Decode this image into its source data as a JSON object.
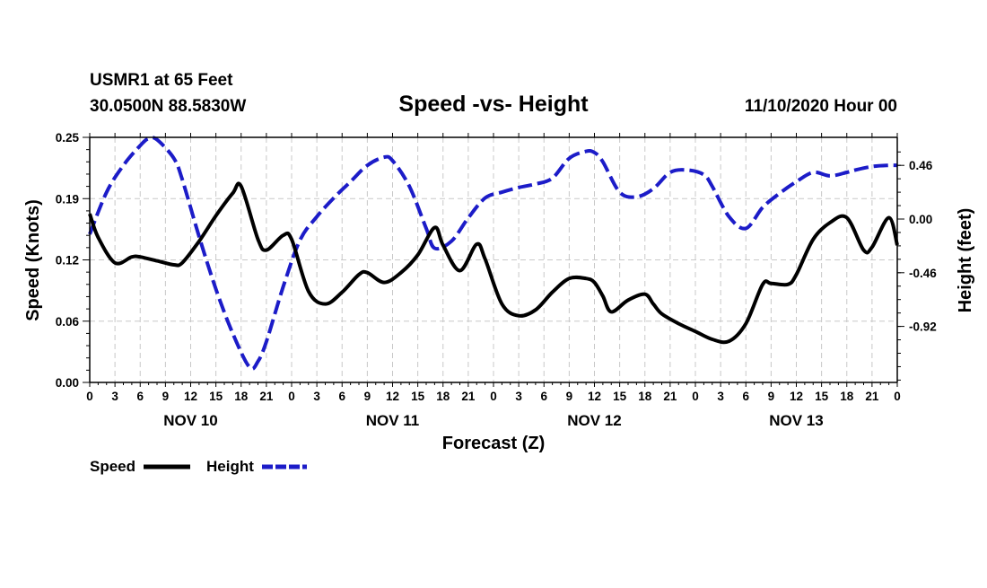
{
  "chart_data": {
    "type": "line",
    "title": "Speed -vs- Height",
    "station": "USMR1 at 65 Feet",
    "location": "30.0500N 88.5830W",
    "run": "11/10/2020 Hour 00",
    "xlabel": "Forecast (Z)",
    "ylabel_left": "Speed (Knots)",
    "ylabel_right": "Height (feet)",
    "x_tick_labels": [
      "0",
      "3",
      "6",
      "9",
      "12",
      "15",
      "18",
      "21",
      "0",
      "3",
      "6",
      "9",
      "12",
      "15",
      "18",
      "21",
      "0",
      "3",
      "6",
      "9",
      "12",
      "15",
      "18",
      "21",
      "0",
      "3",
      "6",
      "9",
      "12",
      "15",
      "18",
      "21",
      "0"
    ],
    "day_labels": [
      {
        "label": "NOV 10",
        "hour": 12
      },
      {
        "label": "NOV 11",
        "hour": 36
      },
      {
        "label": "NOV 12",
        "hour": 60
      },
      {
        "label": "NOV 13",
        "hour": 84
      }
    ],
    "xlim": [
      0,
      96
    ],
    "ylim_left": [
      0,
      0.25
    ],
    "ylim_right": [
      -1.4,
      0.7
    ],
    "left_ticks": [
      "0.00",
      "0.06",
      "0.12",
      "0.19",
      "0.25"
    ],
    "left_tick_values": [
      0,
      0.0625,
      0.125,
      0.1875,
      0.25
    ],
    "right_ticks": [
      "0.46",
      "0.00",
      "-0.46",
      "-0.92"
    ],
    "right_tick_values": [
      0.46,
      0.0,
      -0.46,
      -0.92
    ],
    "series": [
      {
        "name": "Speed",
        "axis": "left",
        "color": "#000000",
        "dash": "solid",
        "x": [
          0,
          1,
          3,
          5,
          6,
          8,
          10,
          11,
          13,
          15,
          17,
          18,
          20,
          21,
          23,
          24,
          26,
          28,
          30,
          32,
          33,
          35,
          37,
          39,
          41,
          42,
          44,
          46,
          47,
          49,
          51,
          53,
          55,
          57,
          59,
          60,
          61,
          62,
          64,
          66,
          67,
          68,
          70,
          72,
          74,
          76,
          78,
          80,
          81,
          83,
          84,
          86,
          88,
          90,
          92,
          93,
          95,
          96
        ],
        "values": [
          0.172,
          0.148,
          0.122,
          0.128,
          0.128,
          0.124,
          0.12,
          0.122,
          0.144,
          0.17,
          0.193,
          0.2,
          0.146,
          0.135,
          0.15,
          0.146,
          0.093,
          0.08,
          0.092,
          0.11,
          0.112,
          0.102,
          0.112,
          0.13,
          0.158,
          0.14,
          0.114,
          0.141,
          0.126,
          0.08,
          0.068,
          0.074,
          0.092,
          0.106,
          0.106,
          0.102,
          0.088,
          0.072,
          0.084,
          0.09,
          0.08,
          0.07,
          0.06,
          0.052,
          0.044,
          0.042,
          0.06,
          0.1,
          0.101,
          0.1,
          0.11,
          0.146,
          0.163,
          0.168,
          0.135,
          0.138,
          0.168,
          0.14
        ]
      },
      {
        "name": "Height",
        "axis": "right",
        "color": "#1c1cc8",
        "dash": "dashed",
        "x": [
          0,
          2,
          4,
          6,
          7,
          8,
          10,
          11,
          13,
          15,
          17,
          19,
          20,
          21,
          23,
          25,
          27,
          29,
          31,
          33,
          35,
          36,
          38,
          40,
          41,
          43,
          45,
          47,
          49,
          51,
          53,
          55,
          57,
          59,
          60,
          61,
          63,
          65,
          67,
          69,
          71,
          73,
          74,
          76,
          78,
          80,
          82,
          84,
          86,
          88,
          90,
          91,
          93,
          95,
          96
        ],
        "values": [
          -0.13,
          0.23,
          0.46,
          0.63,
          0.69,
          0.68,
          0.52,
          0.34,
          -0.15,
          -0.6,
          -0.98,
          -1.27,
          -1.22,
          -1.05,
          -0.58,
          -0.18,
          0.02,
          0.18,
          0.32,
          0.46,
          0.53,
          0.5,
          0.28,
          -0.08,
          -0.25,
          -0.19,
          0.01,
          0.18,
          0.23,
          0.27,
          0.3,
          0.35,
          0.52,
          0.58,
          0.57,
          0.49,
          0.23,
          0.19,
          0.26,
          0.4,
          0.42,
          0.38,
          0.28,
          0.02,
          -0.08,
          0.1,
          0.22,
          0.32,
          0.4,
          0.37,
          0.4,
          0.42,
          0.45,
          0.46,
          0.46
        ]
      }
    ],
    "legend": [
      {
        "label": "Speed",
        "color": "#000000",
        "dash": "solid"
      },
      {
        "label": "Height",
        "color": "#1c1cc8",
        "dash": "dashed"
      }
    ],
    "grid": true,
    "legend_position": "bottom-left"
  }
}
